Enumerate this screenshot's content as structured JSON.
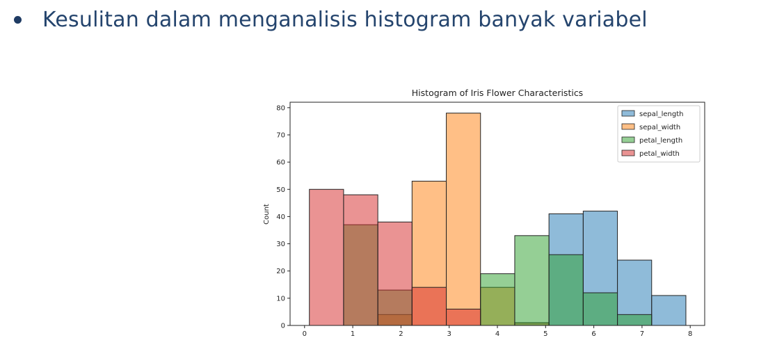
{
  "slide": {
    "bullet_text": "Kesulitan dalam menganalisis histogram banyak variabel",
    "text_color": "#24446d"
  },
  "chart_data": {
    "type": "bar",
    "title": "Histogram of Iris Flower Characteristics",
    "xlabel": "",
    "ylabel": "Count",
    "xlim": [
      -0.3,
      8.3
    ],
    "ylim": [
      0,
      82
    ],
    "xticks": [
      0,
      1,
      2,
      3,
      4,
      5,
      6,
      7,
      8
    ],
    "yticks": [
      0,
      10,
      20,
      30,
      40,
      50,
      60,
      70,
      80
    ],
    "bin_width": 0.71,
    "bin_edges": [
      0.1,
      0.81,
      1.52,
      2.23,
      2.94,
      3.65,
      4.36,
      5.07,
      5.78,
      6.49,
      7.2,
      7.91
    ],
    "legend_position": "upper right",
    "series": [
      {
        "name": "sepal_length",
        "color": "#1f77b4",
        "values": [
          0,
          0,
          0,
          0,
          0,
          0,
          1,
          41,
          42,
          24,
          11
        ]
      },
      {
        "name": "sepal_width",
        "color": "#ff7f0e",
        "values": [
          0,
          0,
          4,
          53,
          78,
          14,
          1,
          0,
          0,
          0,
          0
        ]
      },
      {
        "name": "petal_length",
        "color": "#2ca02c",
        "values": [
          0,
          37,
          13,
          0,
          0,
          19,
          33,
          26,
          12,
          4,
          0
        ]
      },
      {
        "name": "petal_width",
        "color": "#d62728",
        "values": [
          50,
          48,
          38,
          14,
          6,
          0,
          0,
          0,
          0,
          0,
          0
        ]
      }
    ]
  }
}
